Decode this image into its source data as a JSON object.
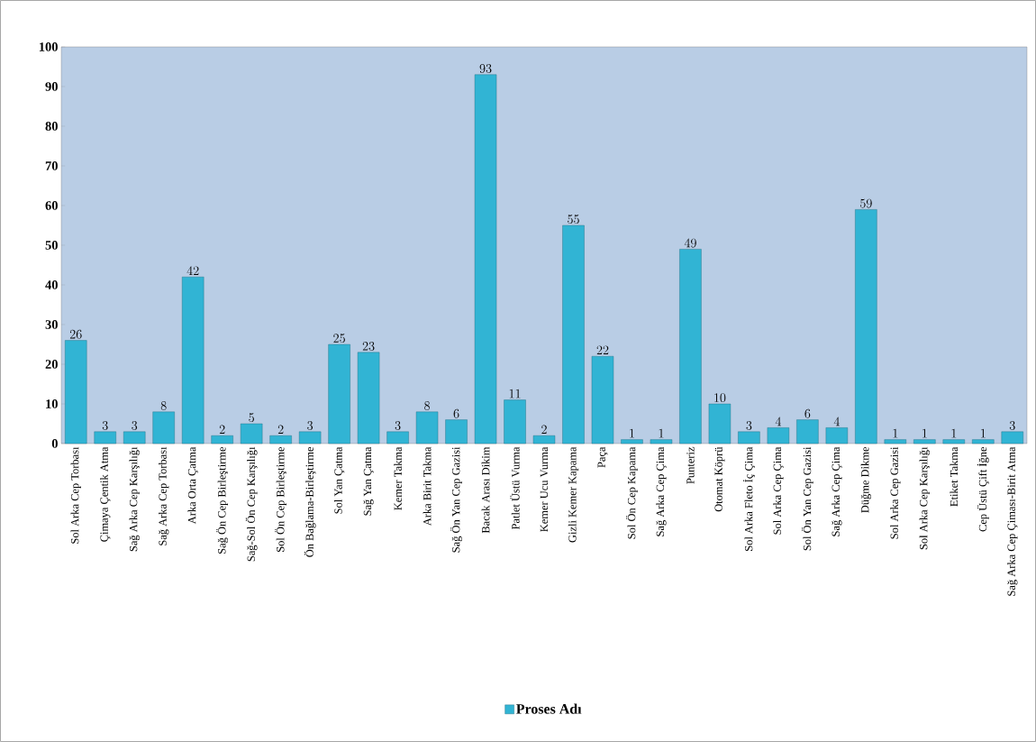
{
  "chart_data": {
    "type": "bar",
    "categories": [
      "Sol Arka Cep Torbası",
      "Çimaya Çentik Atma",
      "Sağ Arka Cep Karşılığı",
      "Sağ Arka Cep Torbası",
      "Arka Orta Çatma",
      "Sağ Ön Cep Birleştirme",
      "Sağ-Sol Ön Cep Karşılığı",
      "Sol Ön Cep Birleştirme",
      "Ön Bağlama-Birleştirme",
      "Sol Yan Çatma",
      "Sağ Yan Çatma",
      "Kemer Takma",
      "Arka Birit Takma",
      "Sağ Ön Yan Cep Gazisi",
      "Bacak Arası Dikim",
      "Patlet Üstü Vurma",
      "Kemer Ucu Vurma",
      "Gizli Kemer Kapama",
      "Paça",
      "Sol Ön Cep Kapama",
      "Sağ Arka Cep Çima",
      "Punteriz",
      "Otomat Köprü",
      "Sol Arka Fleto İç Çima",
      "Sol Arka Cep Çima",
      "Sol Ön Yan Cep Gazisi",
      "Sağ Arka Cep Çima",
      "Düğme Dikme",
      "Sol Arka Cep Gazisi",
      "Sol Arka Cep Karşılığı",
      "Etiket Takma",
      "Cep Üstü Çift İğne",
      "Sağ Arka Cep Çiması-Birit Atma"
    ],
    "series": [
      {
        "name": "Proses Adı",
        "color": "#31b4d4",
        "values": [
          26,
          3,
          3,
          8,
          42,
          2,
          5,
          2,
          3,
          25,
          23,
          3,
          8,
          6,
          93,
          11,
          2,
          55,
          22,
          1,
          1,
          49,
          10,
          3,
          4,
          6,
          4,
          59,
          1,
          1,
          1,
          1,
          3
        ]
      }
    ],
    "ylim": [
      0,
      100
    ],
    "yticks": [
      0,
      10,
      20,
      30,
      40,
      50,
      60,
      70,
      80,
      90,
      100
    ],
    "data_labels": true,
    "legend": "bottom",
    "grid": false
  }
}
